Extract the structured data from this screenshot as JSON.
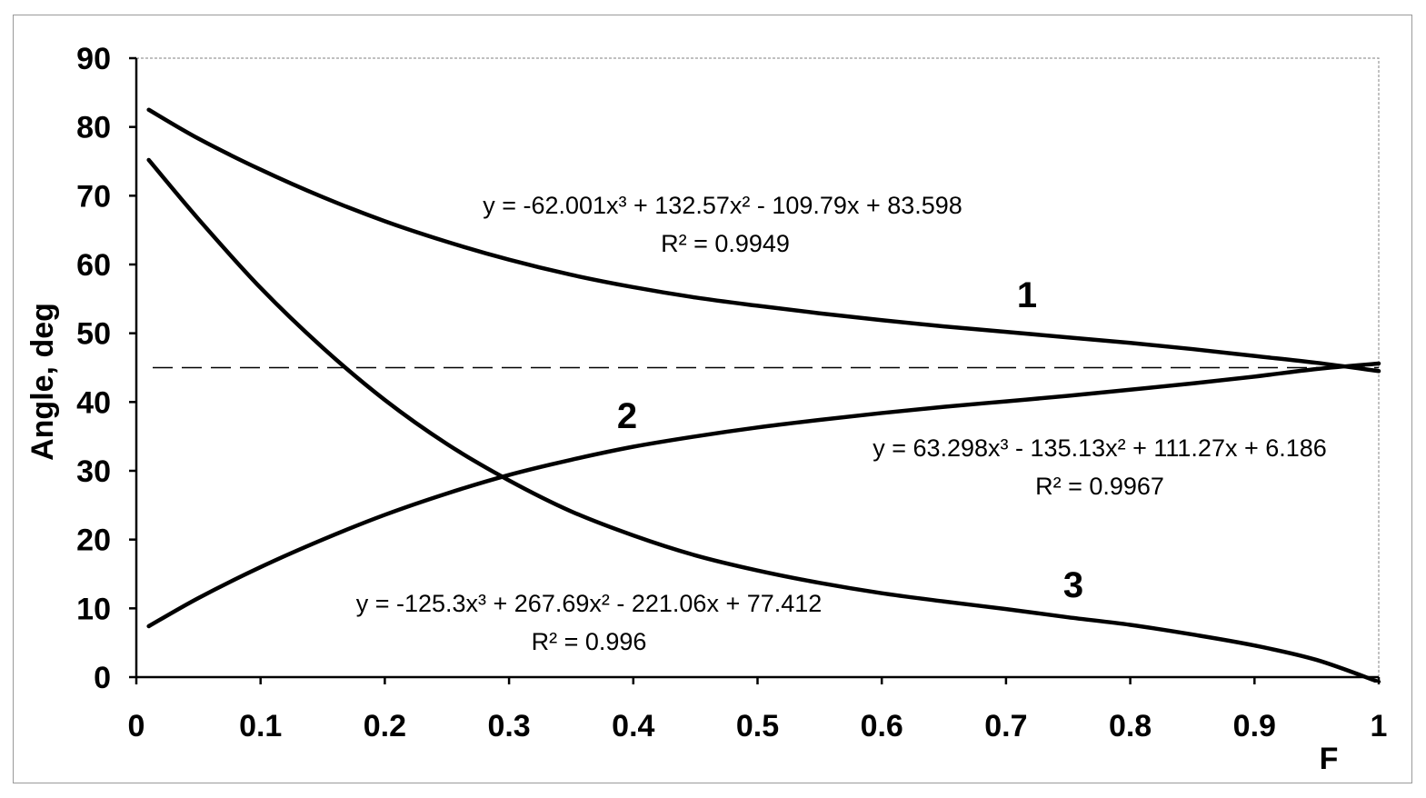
{
  "chart_data": {
    "type": "line",
    "xlabel": "F",
    "ylabel": "Angle, deg",
    "xlim": [
      0,
      1
    ],
    "ylim": [
      0,
      90
    ],
    "x_ticks": [
      0,
      0.1,
      0.2,
      0.3,
      0.4,
      0.5,
      0.6,
      0.7,
      0.8,
      0.9,
      1
    ],
    "y_ticks": [
      0,
      10,
      20,
      30,
      40,
      50,
      60,
      70,
      80,
      90
    ],
    "x_tick_labels": [
      "0",
      "0.1",
      "0.2",
      "0.3",
      "0.4",
      "0.5",
      "0.6",
      "0.7",
      "0.8",
      "0.9",
      "1"
    ],
    "y_tick_labels": [
      "0",
      "10",
      "20",
      "30",
      "40",
      "50",
      "60",
      "70",
      "80",
      "90"
    ],
    "grid": false,
    "reference_line": {
      "y": 45,
      "style": "dashed"
    },
    "series": [
      {
        "name": "1",
        "x": [
          0.01,
          0.05,
          0.1,
          0.15,
          0.2,
          0.25,
          0.3,
          0.35,
          0.4,
          0.45,
          0.5,
          0.55,
          0.6,
          0.65,
          0.7,
          0.75,
          0.8,
          0.85,
          0.9,
          0.95,
          1.0
        ],
        "y": [
          82.5,
          78.3,
          73.8,
          69.8,
          66.3,
          63.3,
          60.7,
          58.5,
          56.7,
          55.2,
          54.0,
          52.9,
          51.9,
          51.0,
          50.2,
          49.4,
          48.6,
          47.7,
          46.7,
          45.7,
          44.5
        ],
        "equation": "y = -62.001x³ + 132.57x² - 109.79x + 83.598",
        "r2": "R² = 0.9949"
      },
      {
        "name": "2",
        "x": [
          0.01,
          0.05,
          0.1,
          0.15,
          0.2,
          0.25,
          0.3,
          0.35,
          0.4,
          0.45,
          0.5,
          0.55,
          0.6,
          0.65,
          0.7,
          0.75,
          0.8,
          0.85,
          0.9,
          0.95,
          1.0
        ],
        "y": [
          7.4,
          11.5,
          16.0,
          20.0,
          23.6,
          26.7,
          29.4,
          31.6,
          33.5,
          35.0,
          36.3,
          37.4,
          38.4,
          39.3,
          40.1,
          40.9,
          41.8,
          42.7,
          43.7,
          44.8,
          45.6
        ],
        "equation": "y = 63.298x³ - 135.13x² + 111.27x + 6.186",
        "r2": "R² = 0.9967"
      },
      {
        "name": "3",
        "x": [
          0.01,
          0.05,
          0.1,
          0.15,
          0.2,
          0.25,
          0.3,
          0.35,
          0.4,
          0.45,
          0.5,
          0.55,
          0.6,
          0.65,
          0.7,
          0.75,
          0.8,
          0.85,
          0.9,
          0.95,
          1.0
        ],
        "y": [
          75.2,
          66.6,
          56.6,
          47.9,
          40.3,
          33.9,
          28.6,
          24.1,
          20.6,
          17.7,
          15.5,
          13.7,
          12.2,
          11.0,
          9.9,
          8.7,
          7.6,
          6.2,
          4.6,
          2.5,
          -0.7
        ],
        "equation": "y = -125.3x³ + 267.69x² - 221.06x + 77.412",
        "r2": "R² = 0.996"
      }
    ]
  },
  "colors": {
    "curve": "#000000",
    "dash": "#000000",
    "axis": "#000000",
    "frame": "#9a9a9a"
  }
}
